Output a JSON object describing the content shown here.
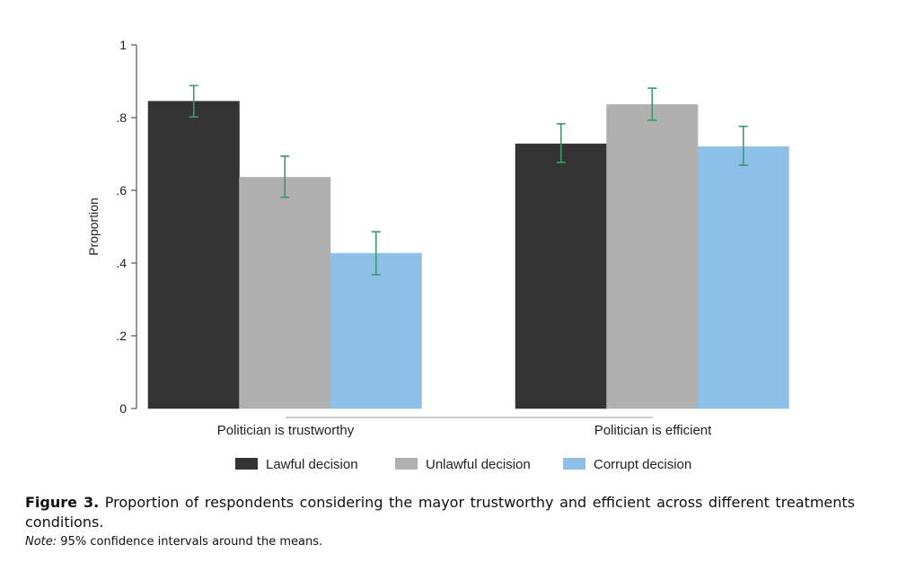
{
  "chart_data": {
    "type": "bar",
    "ylabel": "Proportion",
    "xlabel": "",
    "ylim": [
      0,
      1
    ],
    "yticks": [
      0,
      0.2,
      0.4,
      0.6,
      0.8,
      1
    ],
    "ytick_labels": [
      "0",
      ".2",
      ".4",
      ".6",
      ".8",
      "1"
    ],
    "categories": [
      "Politician is trustworthy",
      "Politician is efficient"
    ],
    "series": [
      {
        "name": "Lawful decision",
        "color": "#333333",
        "values": [
          0.845,
          0.728
        ],
        "ci_low": [
          0.802,
          0.677
        ],
        "ci_high": [
          0.888,
          0.783
        ]
      },
      {
        "name": "Unlawful decision",
        "color": "#b0b0b0",
        "values": [
          0.636,
          0.836
        ],
        "ci_low": [
          0.581,
          0.793
        ],
        "ci_high": [
          0.694,
          0.881
        ]
      },
      {
        "name": "Corrupt decision",
        "color": "#8dc0e8",
        "values": [
          0.427,
          0.72
        ],
        "ci_low": [
          0.368,
          0.669
        ],
        "ci_high": [
          0.486,
          0.776
        ]
      }
    ],
    "errorbar_color": "#3a9a6e",
    "legend_position": "bottom"
  },
  "caption": {
    "label": "Figure 3.",
    "text": "Proportion of respondents considering the mayor trustworthy and efficient across different treatments conditions.",
    "note_label": "Note:",
    "note_text": "95% confidence intervals around the means."
  }
}
